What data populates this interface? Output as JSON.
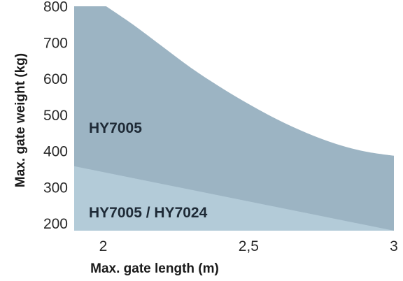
{
  "chart_data": {
    "type": "area",
    "xlabel": "Max. gate length (m)",
    "ylabel": "Max. gate weight (kg)",
    "xlim": [
      1.9,
      3.0
    ],
    "ylim": [
      180,
      800
    ],
    "x_ticks": [
      {
        "value": 2,
        "label": "2"
      },
      {
        "value": 2.5,
        "label": "2,5"
      },
      {
        "value": 3,
        "label": "3"
      }
    ],
    "y_ticks": [
      {
        "value": 200,
        "label": "200"
      },
      {
        "value": 300,
        "label": "300"
      },
      {
        "value": 400,
        "label": "400"
      },
      {
        "value": 500,
        "label": "500"
      },
      {
        "value": 600,
        "label": "600"
      },
      {
        "value": 700,
        "label": "700"
      },
      {
        "value": 800,
        "label": "800"
      }
    ],
    "grid": false,
    "legend": "none",
    "series": [
      {
        "name": "HY7005",
        "color": "#9cb4c3",
        "x": [
          1.9,
          2.01,
          2.1,
          2.2,
          2.3,
          2.4,
          2.5,
          2.6,
          2.7,
          2.8,
          2.9,
          3.0
        ],
        "values": [
          800,
          800,
          751,
          691,
          631,
          578,
          530,
          487,
          450,
          420,
          399,
          387
        ]
      },
      {
        "name": "HY7005 / HY7024",
        "color": "#b3cbd8",
        "x": [
          1.9,
          3.0
        ],
        "values": [
          358,
          180
        ]
      }
    ]
  }
}
